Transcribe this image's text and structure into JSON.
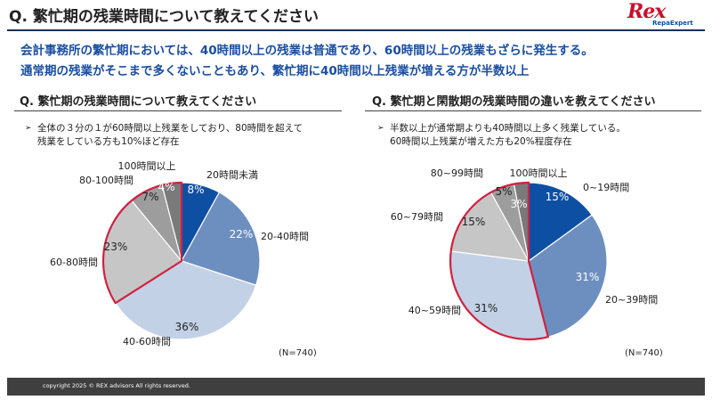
{
  "header": {
    "title": "Q. 繁忙期の残業時間について教えてください",
    "logo_main": "Rex",
    "logo_sub": "RepaExpert"
  },
  "summary": {
    "line1": "会計事務所の繁忙期においては、40時間以上の残業は普通であり、60時間以上の残業もざらに発生する。",
    "line2": "通常期の残業がそこまで多くないこともあり、繁忙期に40時間以上残業が増える方が半数以上"
  },
  "left_panel": {
    "title": "Q. 繁忙期の残業時間について教えてください",
    "bullet_line1": "全体の３分の１が60時間以上残業をしており、80時間を超えて",
    "bullet_line2": "残業をしている方も10%ほど存在",
    "bullet_mark": "➢",
    "n_label": "(N=740)"
  },
  "right_panel": {
    "title": "Q. 繁忙期と閑散期の残業時間の違いを教えてください",
    "bullet_line1": "半数以上が通常期よりも40時間以上多く残業している。",
    "bullet_line2": "60時間以上残業が増えた方も20%程度存在",
    "bullet_mark": "➢",
    "n_label": "(N=740)"
  },
  "chart_data": [
    {
      "type": "pie",
      "categories": [
        "20時間未満",
        "20-40時間",
        "40-60時間",
        "60-80時間",
        "80-100時間",
        "100時間以上"
      ],
      "values": [
        8,
        22,
        36,
        23,
        7,
        4
      ],
      "value_labels": [
        "8%",
        "22%",
        "36%",
        "23%",
        "7%",
        "4%"
      ],
      "colors": [
        "#0d4fa3",
        "#6d8fc0",
        "#c3d1e6",
        "#c6c6c6",
        "#9d9d9d",
        "#7a7a7a"
      ],
      "label_colors": [
        "#ffffff",
        "#ffffff",
        "#222222",
        "#222222",
        "#222222",
        "#ffffff"
      ],
      "highlighted": [
        "60-80時間",
        "80-100時間",
        "100時間以上"
      ],
      "highlight_color": "#d0213f"
    },
    {
      "type": "pie",
      "categories": [
        "0~19時間",
        "20~39時間",
        "40~59時間",
        "60~79時間",
        "80~99時間",
        "100時間以上"
      ],
      "values": [
        15,
        31,
        31,
        15,
        5,
        3
      ],
      "value_labels": [
        "15%",
        "31%",
        "31%",
        "15%",
        "5%",
        "3%"
      ],
      "colors": [
        "#0d4fa3",
        "#6d8fc0",
        "#c3d1e6",
        "#c6c6c6",
        "#9d9d9d",
        "#7a7a7a"
      ],
      "label_colors": [
        "#ffffff",
        "#ffffff",
        "#222222",
        "#222222",
        "#222222",
        "#ffffff"
      ],
      "highlighted": [
        "40~59時間",
        "60~79時間",
        "80~99時間",
        "100時間以上"
      ],
      "highlight_color": "#d0213f"
    }
  ],
  "footer": {
    "copyright": "copyright 2025 © REX advisors All rights reserved."
  }
}
